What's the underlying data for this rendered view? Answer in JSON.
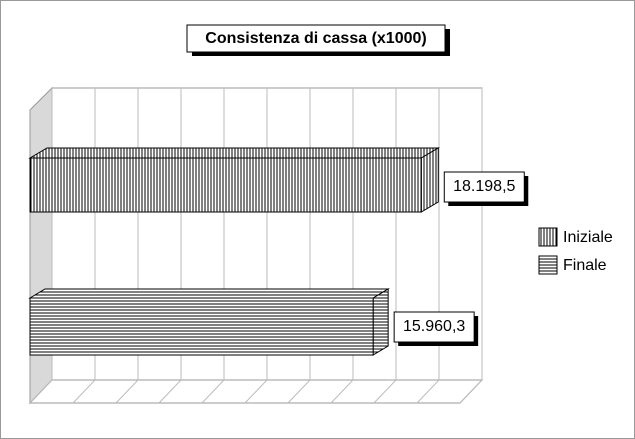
{
  "chart_data": {
    "type": "bar3d_horizontal",
    "title": "Consistenza di cassa (x1000)",
    "series": [
      {
        "name": "Iniziale",
        "color": "#000000",
        "pattern": "vertical",
        "values": [
          18198.5
        ],
        "value_labels": [
          "18.198,5"
        ]
      },
      {
        "name": "Finale",
        "color": "#000000",
        "pattern": "horizontal",
        "values": [
          15960.3
        ],
        "value_labels": [
          "15.960,3"
        ]
      }
    ],
    "xlim": [
      0,
      20000
    ],
    "xticks": [
      0,
      2000,
      4000,
      6000,
      8000,
      10000,
      12000,
      14000,
      16000,
      18000,
      20000
    ],
    "grid": true,
    "legend": "right"
  }
}
